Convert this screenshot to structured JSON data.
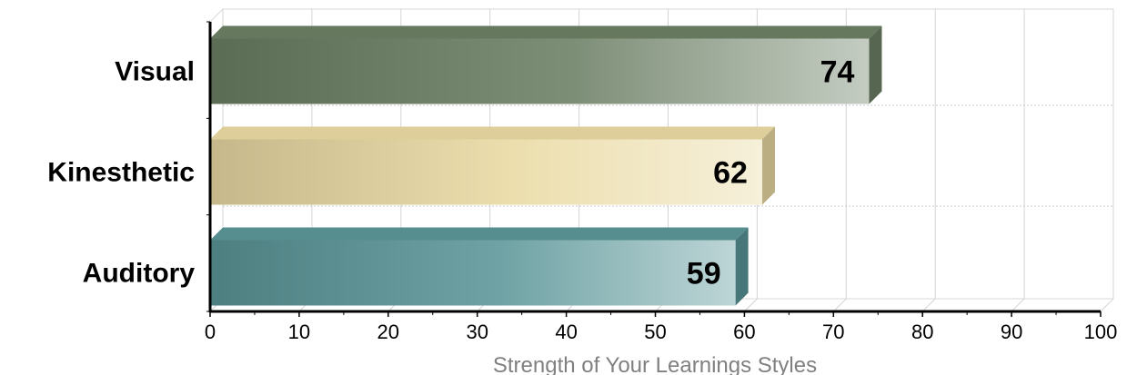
{
  "chart_data": {
    "type": "bar",
    "orientation": "horizontal",
    "categories": [
      "Visual",
      "Kinesthetic",
      "Auditory"
    ],
    "values": [
      74,
      62,
      59
    ],
    "data_labels": [
      "74",
      "62",
      "59"
    ],
    "xlabel": "Strength of Your Learnings Styles",
    "xlim": [
      0,
      100
    ],
    "x_ticks": [
      "0",
      "10",
      "20",
      "30",
      "40",
      "50",
      "60",
      "70",
      "80",
      "90",
      "100"
    ],
    "grid": "vertical",
    "style": "3d",
    "bar_colors": [
      "#6b7f64",
      "#e9d9a2",
      "#5a9598"
    ]
  }
}
